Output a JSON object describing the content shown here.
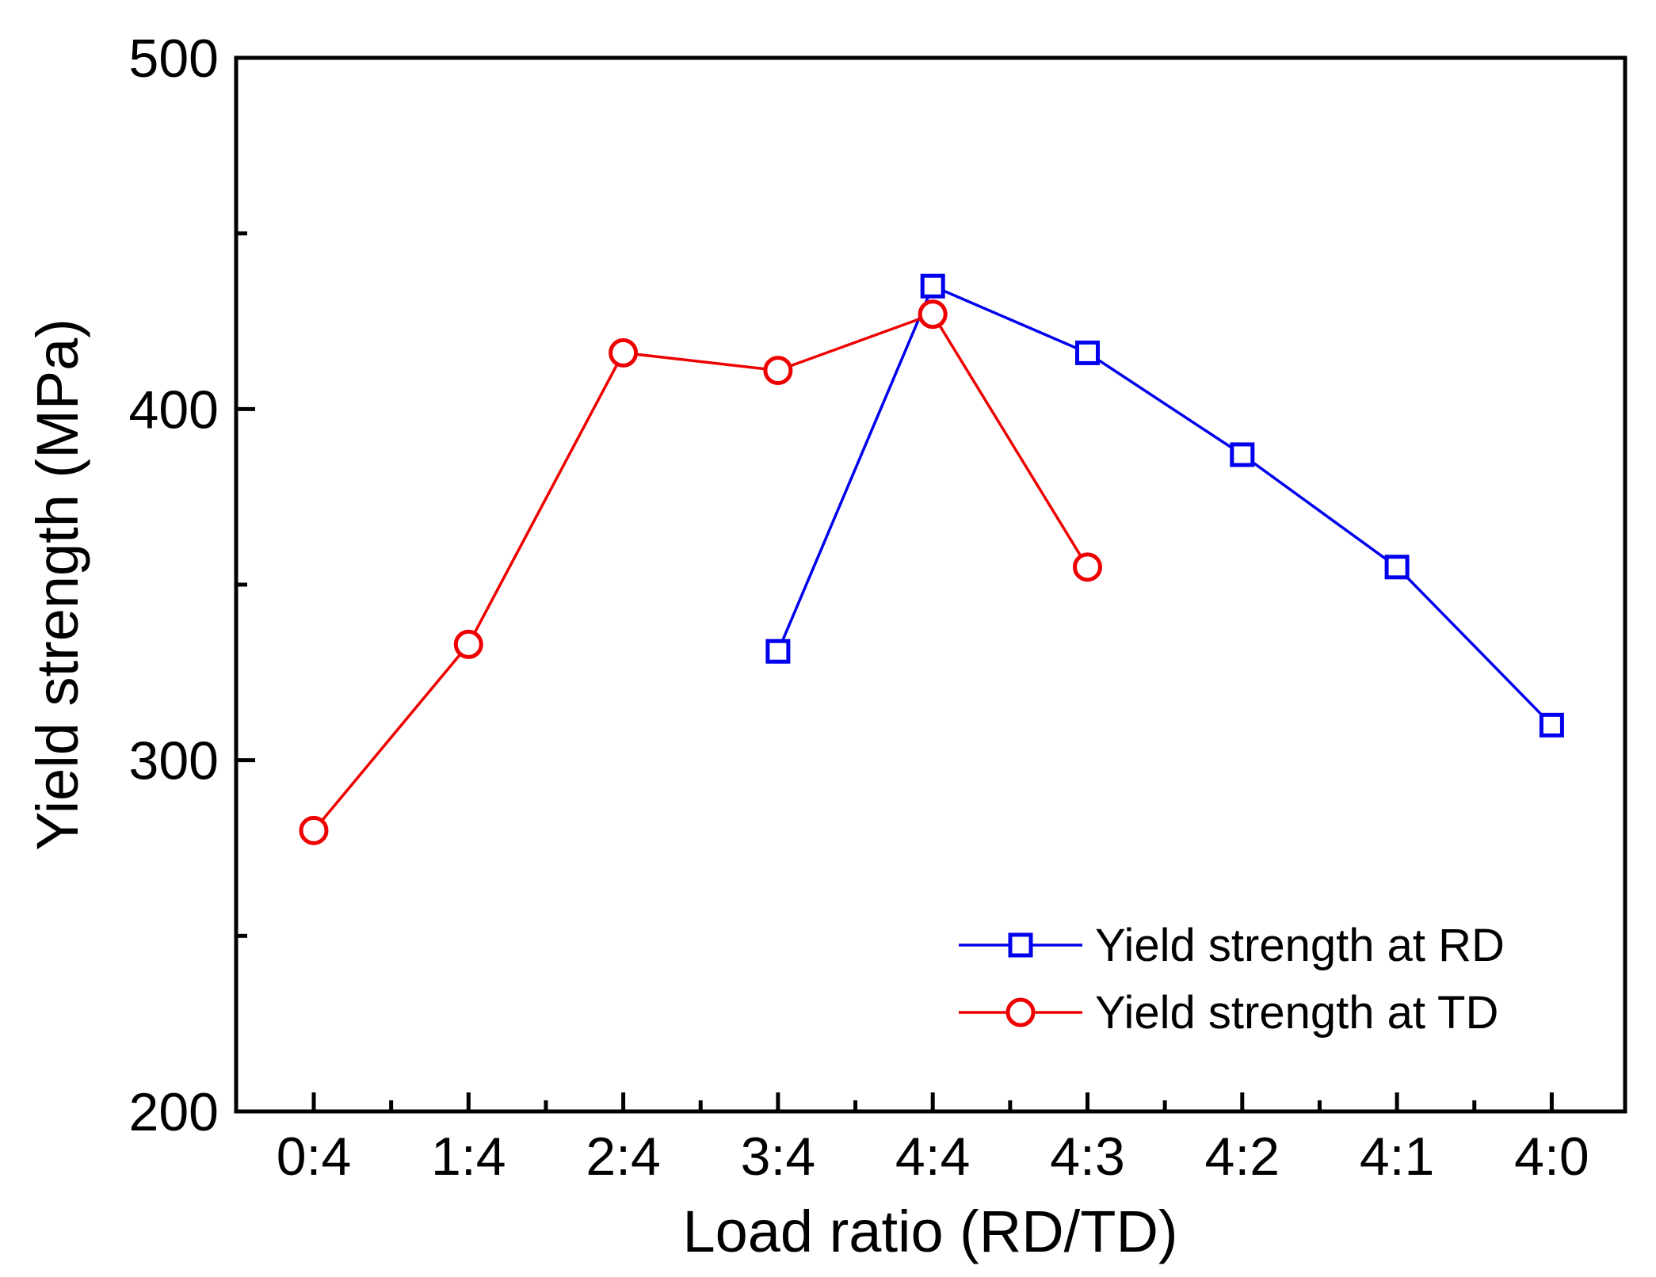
{
  "chart_data": {
    "type": "line",
    "title": "",
    "xlabel": "Load ratio (RD/TD)",
    "ylabel": "Yield strength (MPa)",
    "categories": [
      "0:4",
      "1:4",
      "2:4",
      "3:4",
      "4:4",
      "4:3",
      "4:2",
      "4:1",
      "4:0"
    ],
    "ylim": [
      200,
      500
    ],
    "yticks": [
      200,
      300,
      400,
      500
    ],
    "yminor_ticks": [
      250,
      350,
      450
    ],
    "grid": false,
    "legend_position": "bottom-right",
    "series": [
      {
        "name": "Yield strength at RD",
        "color": "#0000ee",
        "marker": "square",
        "values": [
          null,
          null,
          null,
          331,
          435,
          416,
          387,
          355,
          310
        ]
      },
      {
        "name": "Yield strength at TD",
        "color": "#ee0000",
        "marker": "circle",
        "values": [
          280,
          333,
          416,
          411,
          427,
          355,
          null,
          null,
          null
        ]
      }
    ]
  }
}
